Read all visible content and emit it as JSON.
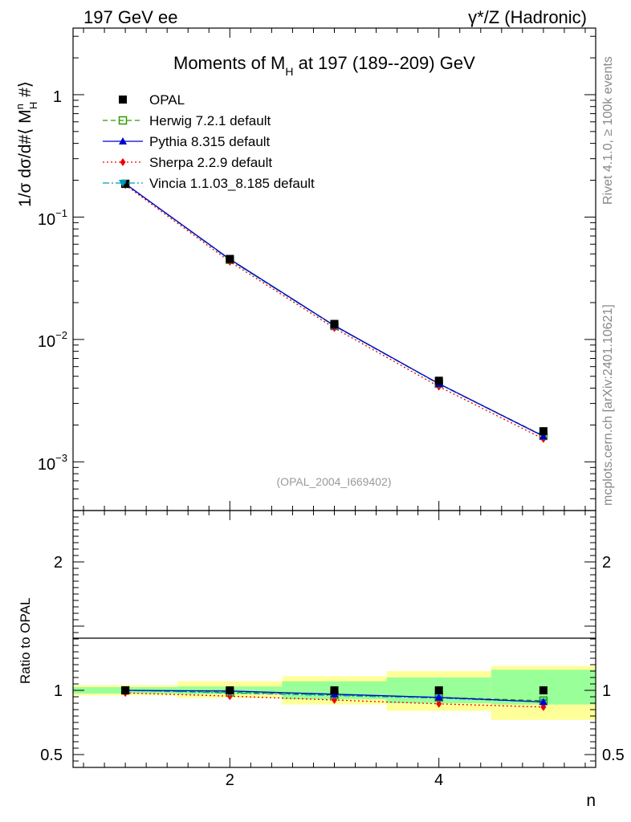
{
  "header": {
    "left": "197 GeV ee",
    "right": "γ*/Z (Hadronic)"
  },
  "side": {
    "rivet": "Rivet 4.1.0, ≥ 100k events",
    "mcplots": "mcplots.cern.ch [arXiv:2401.10621]"
  },
  "chart_data": {
    "type": "line",
    "title": "Moments of M_H at 197 (189--209) GeV",
    "xlabel": "n",
    "ylabel": "1/σ dσ/d#⟨ M_H^n #⟩",
    "ratio_ylabel": "Ratio to OPAL",
    "analysis_id": "(OPAL_2004_I669402)",
    "x": [
      1,
      2,
      3,
      4,
      5
    ],
    "xlim": [
      0.5,
      5.5
    ],
    "ylim": [
      0.0004,
      3.5
    ],
    "yscale": "log",
    "ratio_ylim": [
      0.4,
      2.4
    ],
    "x_ticks": [
      2,
      4
    ],
    "x_tick_labels": [
      "2",
      "4"
    ],
    "y_ticks": [
      1,
      0.1,
      0.01,
      0.001
    ],
    "y_tick_labels": {
      "t0": {
        "base": "1",
        "exp": ""
      },
      "t1": {
        "base": "10",
        "exp": "−1"
      },
      "t2": {
        "base": "10",
        "exp": "−2"
      },
      "t3": {
        "base": "10",
        "exp": "−3"
      }
    },
    "ratio_ticks": [
      0.5,
      1,
      2
    ],
    "ratio_tick_labels": [
      "0.5",
      "1",
      "2"
    ],
    "series": [
      {
        "name": "OPAL",
        "label": "OPAL",
        "color": "#000000",
        "marker": "square-filled",
        "style": "points",
        "values": [
          0.187,
          0.0455,
          0.0134,
          0.0046,
          0.00178
        ],
        "ratio": [
          1,
          1,
          1,
          1,
          1
        ]
      },
      {
        "name": "Herwig",
        "label": "Herwig 7.2.1 default",
        "color": "#339900",
        "marker": "square-open",
        "style": "dashed",
        "values": [
          0.187,
          0.0448,
          0.0129,
          0.00435,
          0.00163
        ],
        "ratio": [
          1.0,
          0.985,
          0.965,
          0.945,
          0.92
        ]
      },
      {
        "name": "Pythia",
        "label": "Pythia 8.315 default",
        "color": "#0000cc",
        "marker": "triangle-up",
        "style": "solid",
        "values": [
          0.187,
          0.0453,
          0.013,
          0.00435,
          0.00162
        ],
        "ratio": [
          1.0,
          0.995,
          0.97,
          0.945,
          0.91
        ]
      },
      {
        "name": "Sherpa",
        "label": "Sherpa 2.2.9 default",
        "color": "#ee0000",
        "marker": "diamond",
        "style": "dotted",
        "values": [
          0.183,
          0.0432,
          0.0124,
          0.00412,
          0.00154
        ],
        "ratio": [
          0.98,
          0.955,
          0.925,
          0.895,
          0.87
        ]
      },
      {
        "name": "Vincia",
        "label": "Vincia 1.1.03_8.185 default",
        "color": "#0099bb",
        "marker": "triangle-down",
        "style": "dashdot",
        "values": [
          0.187,
          0.0448,
          0.0129,
          0.00432,
          0.00162
        ],
        "ratio": [
          1.0,
          0.98,
          0.96,
          0.94,
          0.91
        ]
      }
    ],
    "ratio_bands": {
      "green": [
        [
          0.975,
          1.025
        ],
        [
          0.97,
          1.03
        ],
        [
          0.93,
          1.07
        ],
        [
          0.9,
          1.1
        ],
        [
          0.89,
          1.16
        ]
      ],
      "yellow": [
        [
          0.96,
          1.04
        ],
        [
          0.94,
          1.07
        ],
        [
          0.89,
          1.11
        ],
        [
          0.84,
          1.15
        ],
        [
          0.77,
          1.19
        ]
      ]
    }
  }
}
